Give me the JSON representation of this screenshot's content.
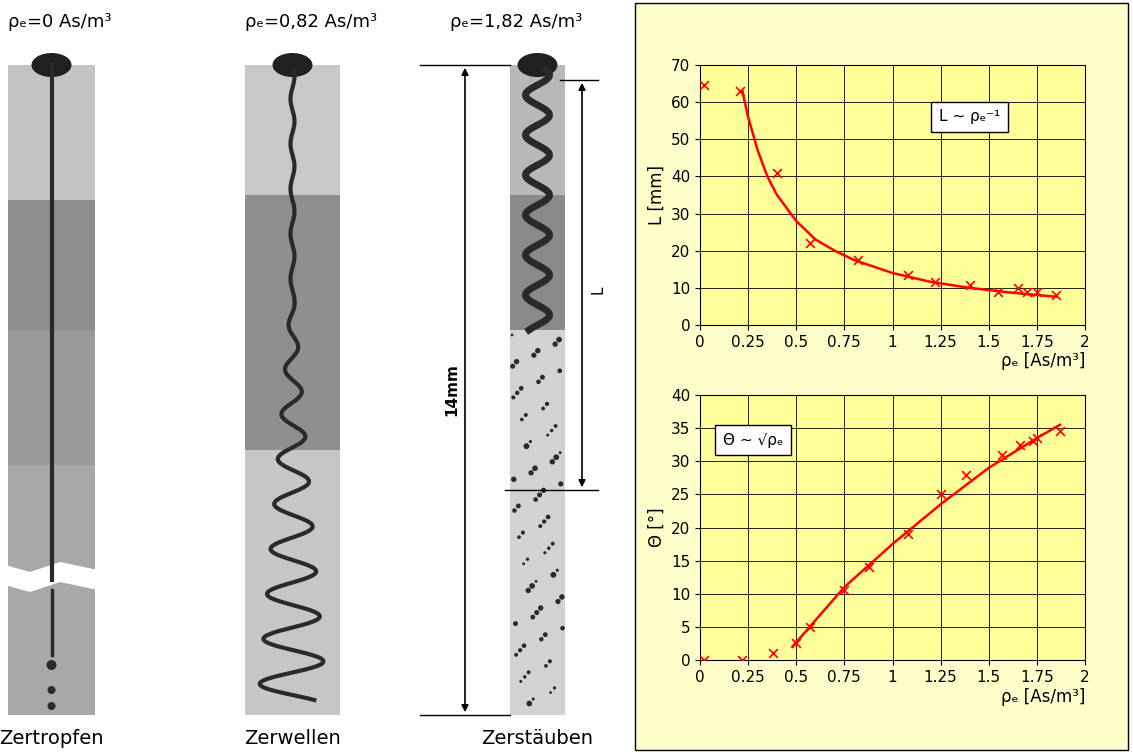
{
  "photos": [
    {
      "title": "ρₑ=0 As/m³",
      "caption": "Zertropfen"
    },
    {
      "title": "ρₑ=0,82 As/m³",
      "caption": "Zerwellen"
    },
    {
      "title": "ρₑ=1,82 As/m³",
      "caption": "Zerstäuben"
    }
  ],
  "photo_annotations": {
    "height": "14mm",
    "length": "L"
  },
  "chart_data": [
    {
      "type": "scatter",
      "xlabel": "ρₑ [As/m³]",
      "ylabel": "L [mm]",
      "annotation": "L ~ ρₑ⁻¹",
      "xlim": [
        0,
        2
      ],
      "ylim": [
        0,
        70
      ],
      "xticks": [
        0,
        0.25,
        0.5,
        0.75,
        1,
        1.25,
        1.5,
        1.75,
        2
      ],
      "yticks": [
        0,
        10,
        20,
        30,
        40,
        50,
        60,
        70
      ],
      "grid": true,
      "series": [
        {
          "type": "scatter",
          "marker": "x",
          "color": "#ff0000",
          "x": [
            0.02,
            0.21,
            0.4,
            0.57,
            0.82,
            1.08,
            1.22,
            1.4,
            1.55,
            1.65,
            1.7,
            1.75,
            1.85
          ],
          "values": [
            64.5,
            63,
            41,
            22,
            17.5,
            13.5,
            11.5,
            10.8,
            9,
            10,
            9,
            8.8,
            8
          ]
        },
        {
          "type": "line",
          "color": "#ff0000",
          "line_style": "solid",
          "x": [
            0.22,
            0.25,
            0.3,
            0.35,
            0.4,
            0.5,
            0.6,
            0.7,
            0.8,
            1.0,
            1.2,
            1.4,
            1.6,
            1.85
          ],
          "values": [
            63,
            56,
            47,
            40,
            35,
            28,
            23,
            20,
            17.5,
            14,
            11.6,
            10,
            8.8,
            7.6
          ]
        }
      ]
    },
    {
      "type": "scatter",
      "xlabel": "ρₑ [As/m³]",
      "ylabel": "Θ [°]",
      "annotation": "Θ ~ √ρₑ",
      "xlim": [
        0,
        2
      ],
      "ylim": [
        0,
        40
      ],
      "xticks": [
        0,
        0.25,
        0.5,
        0.75,
        1,
        1.25,
        1.5,
        1.75,
        2
      ],
      "yticks": [
        0,
        5,
        10,
        15,
        20,
        25,
        30,
        35,
        40
      ],
      "grid": true,
      "series": [
        {
          "type": "scatter",
          "marker": "x",
          "color": "#ff0000",
          "x": [
            0.02,
            0.22,
            0.38,
            0.5,
            0.57,
            0.75,
            0.88,
            1.08,
            1.25,
            1.38,
            1.57,
            1.66,
            1.73,
            1.75,
            1.87
          ],
          "values": [
            0,
            0,
            1,
            2.5,
            5,
            10.5,
            14,
            19,
            25,
            28,
            31,
            32.5,
            33,
            33.5,
            34.5
          ]
        },
        {
          "type": "line",
          "color": "#ff0000",
          "line_style": "solid",
          "x": [
            0.48,
            0.6,
            0.75,
            1.0,
            1.25,
            1.5,
            1.75,
            1.87
          ],
          "values": [
            2,
            6,
            11,
            17.5,
            23.5,
            29,
            33.5,
            35.5
          ]
        }
      ]
    }
  ]
}
